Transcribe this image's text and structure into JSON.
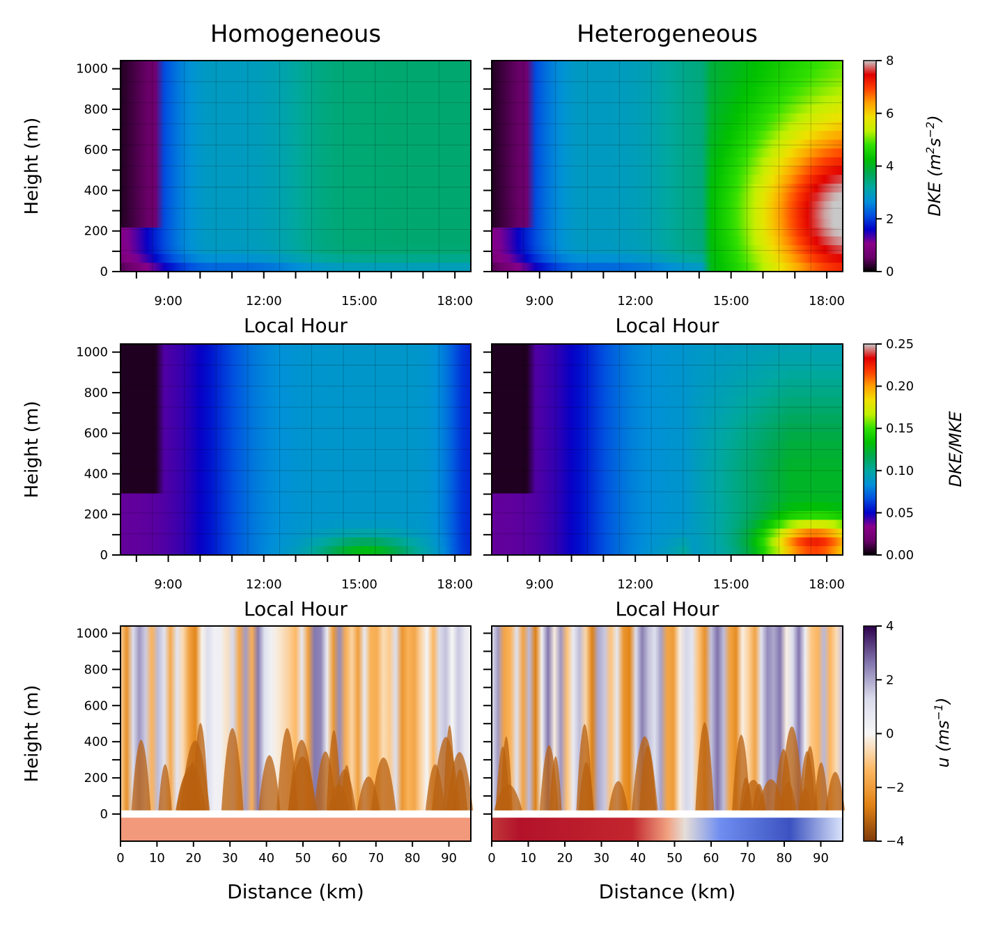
{
  "colors": {
    "dke_cmap": [
      "#000000",
      "#6a006a",
      "#8a008a",
      "#0000c8",
      "#0050e0",
      "#0090d8",
      "#00a8a0",
      "#00a850",
      "#00c000",
      "#30e000",
      "#c0f000",
      "#f0e000",
      "#ffa000",
      "#ff4000",
      "#e00000",
      "#c8c8c8"
    ],
    "u_cmap": [
      "#2d004b",
      "#8073ac",
      "#d8daeb",
      "#f7f7f7",
      "#fdb863",
      "#e08214",
      "#7f3b08"
    ],
    "fill_homogeneous": "#f3997b"
  },
  "chart_data": [
    {
      "id": "dke_homogeneous",
      "type": "heatmap",
      "title": "Homogeneous",
      "xlabel": "Local Hour",
      "ylabel": "Height (m)",
      "xlim": [
        7.5,
        18.5
      ],
      "ylim": [
        0,
        1040
      ],
      "x_ticks": [
        9,
        12,
        15,
        18
      ],
      "x_tick_labels": [
        "9:00",
        "12:00",
        "15:00",
        "18:00"
      ],
      "y_ticks": [
        0,
        200,
        400,
        600,
        800,
        1000
      ],
      "y_tick_labels": [
        "0",
        "200",
        "400",
        "600",
        "800",
        "1000"
      ],
      "grid": true,
      "colorbar_ref": "dke"
    },
    {
      "id": "dke_heterogeneous",
      "type": "heatmap",
      "title": "Heterogeneous",
      "xlabel": "Local Hour",
      "ylabel": "",
      "xlim": [
        7.5,
        18.5
      ],
      "ylim": [
        0,
        1040
      ],
      "x_ticks": [
        9,
        12,
        15,
        18
      ],
      "x_tick_labels": [
        "9:00",
        "12:00",
        "15:00",
        "18:00"
      ],
      "y_ticks": [
        0,
        200,
        400,
        600,
        800,
        1000
      ],
      "grid": true,
      "colorbar_ref": "dke"
    },
    {
      "id": "ratio_homogeneous",
      "type": "heatmap",
      "xlabel": "Local Hour",
      "ylabel": "Height (m)",
      "xlim": [
        7.5,
        18.5
      ],
      "ylim": [
        0,
        1040
      ],
      "x_ticks": [
        9,
        12,
        15,
        18
      ],
      "x_tick_labels": [
        "9:00",
        "12:00",
        "15:00",
        "18:00"
      ],
      "y_ticks": [
        0,
        200,
        400,
        600,
        800,
        1000
      ],
      "y_tick_labels": [
        "0",
        "200",
        "400",
        "600",
        "800",
        "1000"
      ],
      "grid": true,
      "colorbar_ref": "ratio"
    },
    {
      "id": "ratio_heterogeneous",
      "type": "heatmap",
      "xlabel": "Local Hour",
      "ylabel": "",
      "xlim": [
        7.5,
        18.5
      ],
      "ylim": [
        0,
        1040
      ],
      "x_ticks": [
        9,
        12,
        15,
        18
      ],
      "x_tick_labels": [
        "9:00",
        "12:00",
        "15:00",
        "18:00"
      ],
      "y_ticks": [
        0,
        200,
        400,
        600,
        800,
        1000
      ],
      "grid": true,
      "colorbar_ref": "ratio"
    },
    {
      "id": "u_homogeneous",
      "type": "heatmap",
      "xlabel": "Distance (km)",
      "ylabel": "Height (m)",
      "xlim": [
        0,
        96
      ],
      "ylim": [
        -150,
        1040
      ],
      "x_ticks": [
        0,
        10,
        20,
        30,
        40,
        50,
        60,
        70,
        80,
        90
      ],
      "x_tick_labels": [
        "0",
        "10",
        "20",
        "30",
        "40",
        "50",
        "60",
        "70",
        "80",
        "90"
      ],
      "y_ticks": [
        0,
        200,
        400,
        600,
        800,
        1000
      ],
      "y_tick_labels": [
        "0",
        "200",
        "400",
        "600",
        "800",
        "1000"
      ],
      "surface_strip": "uniform",
      "colorbar_ref": "u"
    },
    {
      "id": "u_heterogeneous",
      "type": "heatmap",
      "xlabel": "Distance (km)",
      "ylabel": "",
      "xlim": [
        0,
        96
      ],
      "ylim": [
        -150,
        1040
      ],
      "x_ticks": [
        0,
        10,
        20,
        30,
        40,
        50,
        60,
        70,
        80,
        90
      ],
      "x_tick_labels": [
        "0",
        "10",
        "20",
        "30",
        "40",
        "50",
        "60",
        "70",
        "80",
        "90"
      ],
      "y_ticks": [
        0,
        200,
        400,
        600,
        800,
        1000
      ],
      "surface_strip": "warm 0-52 km, cool 55-96 km",
      "colorbar_ref": "u"
    }
  ],
  "colorbars": {
    "dke": {
      "label_html": "DKE (m<tspan baseline-shift=\"super\" font-size=\"16\">2</tspan>s<tspan baseline-shift=\"super\" font-size=\"16\">−2</tspan>)",
      "label_main": "DKE (m",
      "label_sup1": "2",
      "label_mid": "s",
      "label_sup2": "−2",
      "label_end": ")",
      "range": [
        0,
        8
      ],
      "ticks": [
        0,
        2,
        4,
        6,
        8
      ],
      "tick_labels": [
        "0",
        "2",
        "4",
        "6",
        "8"
      ]
    },
    "ratio": {
      "label": "DKE/MKE",
      "range": [
        0,
        0.25
      ],
      "ticks": [
        0,
        0.05,
        0.1,
        0.15,
        0.2,
        0.25
      ],
      "tick_labels": [
        "0.00",
        "0.05",
        "0.10",
        "0.15",
        "0.20",
        "0.25"
      ]
    },
    "u": {
      "label_main": "u (ms",
      "label_sup": "−1",
      "label_end": ")",
      "range": [
        -4,
        4
      ],
      "ticks": [
        -4,
        -2,
        0,
        2,
        4
      ],
      "tick_labels": [
        "−4",
        "−2",
        "0",
        "2",
        "4"
      ]
    }
  }
}
